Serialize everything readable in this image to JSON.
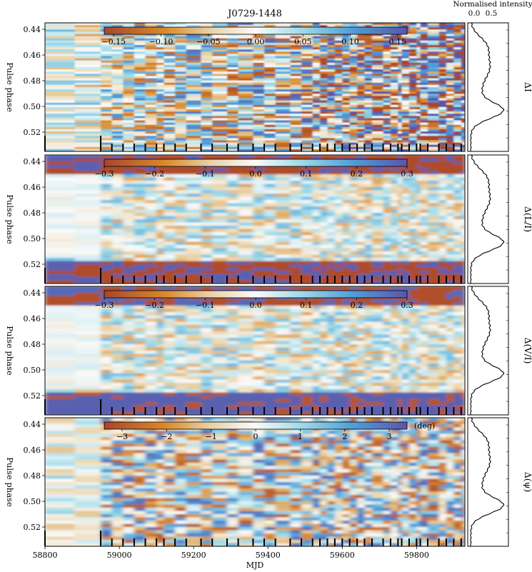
{
  "chart_data": {
    "type": "heatmap",
    "title": "J0729-1448",
    "xlabel": "MJD",
    "x_ticks": [
      58800,
      59000,
      59200,
      59400,
      59600,
      59800
    ],
    "x_range": [
      58800,
      59930
    ],
    "profile_axis_label": "Normalised intensity",
    "profile_ticks": [
      "0.0",
      "0.5"
    ],
    "colormap": {
      "low": "#b5542a",
      "mid": "#ffffff",
      "high": "#5a5fb0"
    },
    "observation_mjds": [
      58800,
      58950,
      58980,
      59010,
      59040,
      59070,
      59100,
      59120,
      59150,
      59180,
      59220,
      59250,
      59290,
      59320,
      59360,
      59390,
      59420,
      59460,
      59490,
      59520,
      59540,
      59560,
      59580,
      59600,
      59620,
      59640,
      59660,
      59680,
      59710,
      59730,
      59750,
      59760,
      59780,
      59800,
      59810,
      59830,
      59860,
      59880,
      59900,
      59920
    ],
    "panels": [
      {
        "ylabel": "Pulse phase",
        "y_ticks": [
          "0.44",
          "0.46",
          "0.48",
          "0.50",
          "0.52"
        ],
        "y_range": [
          0.435,
          0.535
        ],
        "quantity": "ΔI",
        "cbar_ticks": [
          "−0.15",
          "−0.10",
          "−0.05",
          "0.00",
          "0.05",
          "0.10",
          "0.15"
        ],
        "cbar_range": [
          -0.16,
          0.16
        ],
        "cbar_unit": ""
      },
      {
        "ylabel": "Pulse phase",
        "y_ticks": [
          "0.44",
          "0.46",
          "0.48",
          "0.50",
          "0.52"
        ],
        "y_range": [
          0.435,
          0.535
        ],
        "quantity": "Δ(L/I)",
        "cbar_ticks": [
          "−0.3",
          "−0.2",
          "−0.1",
          "0.0",
          "0.1",
          "0.2",
          "0.3"
        ],
        "cbar_range": [
          -0.3,
          0.3
        ],
        "cbar_unit": ""
      },
      {
        "ylabel": "Pulse phase",
        "y_ticks": [
          "0.44",
          "0.46",
          "0.48",
          "0.50",
          "0.52"
        ],
        "y_range": [
          0.435,
          0.535
        ],
        "quantity": "Δ(V/I)",
        "cbar_ticks": [
          "−0.3",
          "−0.2",
          "−0.1",
          "0.0",
          "0.1",
          "0.2",
          "0.3"
        ],
        "cbar_range": [
          -0.3,
          0.3
        ],
        "cbar_unit": ""
      },
      {
        "ylabel": "Pulse phase",
        "y_ticks": [
          "0.44",
          "0.46",
          "0.48",
          "0.50",
          "0.52"
        ],
        "y_range": [
          0.435,
          0.535
        ],
        "quantity": "Δ(ψ)",
        "cbar_ticks": [
          "−3",
          "−2",
          "−1",
          "0",
          "1",
          "2",
          "3"
        ],
        "cbar_range": [
          -3.4,
          3.4
        ],
        "cbar_unit": "(deg)"
      }
    ]
  }
}
